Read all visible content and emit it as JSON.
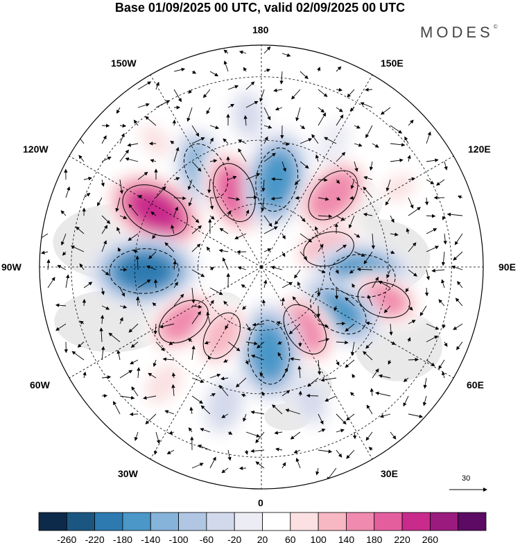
{
  "title": "Base 01/09/2025 00 UTC, valid 02/09/2025 00 UTC",
  "logo": "MODES",
  "logo_mark": "©",
  "longitude_labels": {
    "top": "180",
    "bottom": "0",
    "left": "90W",
    "right": "90E",
    "upper_left_1": "150W",
    "upper_left_2": "120W",
    "upper_right_1": "150E",
    "upper_right_2": "120E",
    "lower_left_1": "60W",
    "lower_left_2": "30W",
    "lower_right_1": "60E",
    "lower_right_2": "30E"
  },
  "vector_scale": {
    "label": "30",
    "value": 30
  },
  "colorbar": {
    "ticks": [
      "-260",
      "-220",
      "-180",
      "-140",
      "-100",
      "-60",
      "-20",
      "20",
      "60",
      "100",
      "140",
      "180",
      "220",
      "260"
    ],
    "colors": [
      "#0d2a4a",
      "#1b5680",
      "#2d7ab0",
      "#4a97c8",
      "#86b3d9",
      "#b0c6e3",
      "#d3d9ec",
      "#ececf4",
      "#ffffff",
      "#fbe1e2",
      "#f7b7c3",
      "#f08aae",
      "#e45e9e",
      "#c92b8c",
      "#9b1a7e",
      "#5c0a63"
    ]
  },
  "anomaly_centers": [
    {
      "lon": -118,
      "lat": 52,
      "value": 230
    },
    {
      "lon": -88,
      "lat": 53,
      "value": -230
    },
    {
      "lon": -150,
      "lat": 55,
      "value": -170
    },
    {
      "lon": -160,
      "lat": 65,
      "value": 180
    },
    {
      "lon": 170,
      "lat": 62,
      "value": -200
    },
    {
      "lon": 135,
      "lat": 58,
      "value": 170
    },
    {
      "lon": 105,
      "lat": 68,
      "value": 130
    },
    {
      "lon": 85,
      "lat": 58,
      "value": -210
    },
    {
      "lon": 75,
      "lat": 50,
      "value": 140
    },
    {
      "lon": 60,
      "lat": 62,
      "value": -180
    },
    {
      "lon": 35,
      "lat": 66,
      "value": 150
    },
    {
      "lon": 5,
      "lat": 63,
      "value": -200
    },
    {
      "lon": -55,
      "lat": 60,
      "value": 150
    },
    {
      "lon": -30,
      "lat": 65,
      "value": 120
    },
    {
      "lon": -40,
      "lat": 42,
      "value": 80
    },
    {
      "lon": -15,
      "lat": 45,
      "value": -80
    },
    {
      "lon": 20,
      "lat": 45,
      "value": -60
    },
    {
      "lon": 120,
      "lat": 40,
      "value": 60
    },
    {
      "lon": -140,
      "lat": 38,
      "value": 60
    },
    {
      "lon": -175,
      "lat": 42,
      "value": -60
    },
    {
      "lon": 150,
      "lat": 45,
      "value": -40
    }
  ]
}
